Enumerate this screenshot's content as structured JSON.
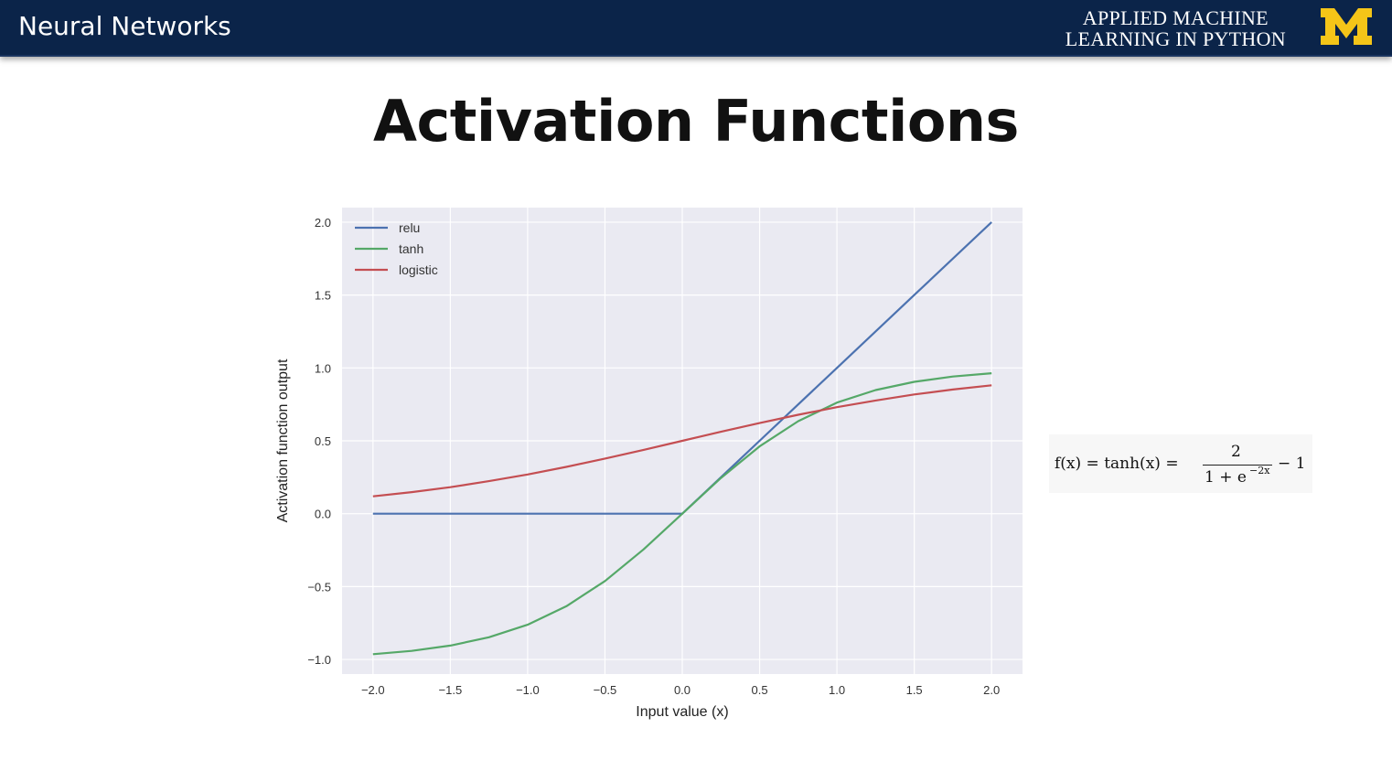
{
  "header": {
    "title": "Neural Networks",
    "brand_line1": "APPLIED MACHINE",
    "brand_line2": "LEARNING IN PYTHON",
    "logo_color": "#f5c518"
  },
  "slide": {
    "title": "Activation Functions"
  },
  "formula": {
    "lhs": "f(x) = tanh(x) =",
    "numerator": "2",
    "denominator": "1 + e",
    "exponent": "−2x",
    "tail": "− 1"
  },
  "chart_data": {
    "type": "line",
    "title": "",
    "xlabel": "Input value (x)",
    "ylabel": "Activation function output",
    "xlim": [
      -2.2,
      2.2
    ],
    "ylim": [
      -1.1,
      2.1
    ],
    "xticks": [
      -2.0,
      -1.5,
      -1.0,
      -0.5,
      0.0,
      0.5,
      1.0,
      1.5,
      2.0
    ],
    "xtick_labels": [
      "−2.0",
      "−1.5",
      "−1.0",
      "−0.5",
      "0.0",
      "0.5",
      "1.0",
      "1.5",
      "2.0"
    ],
    "yticks": [
      -1.0,
      -0.5,
      0.0,
      0.5,
      1.0,
      1.5,
      2.0
    ],
    "ytick_labels": [
      "−1.0",
      "−0.5",
      "0.0",
      "0.5",
      "1.0",
      "1.5",
      "2.0"
    ],
    "grid": true,
    "legend_position": "top-left",
    "series": [
      {
        "name": "relu",
        "color": "#4c72b0",
        "x": [
          -2.0,
          -1.5,
          -1.0,
          -0.5,
          0.0,
          0.5,
          1.0,
          1.5,
          2.0
        ],
        "y": [
          0.0,
          0.0,
          0.0,
          0.0,
          0.0,
          0.5,
          1.0,
          1.5,
          2.0
        ]
      },
      {
        "name": "tanh",
        "color": "#55a868",
        "x": [
          -2.0,
          -1.75,
          -1.5,
          -1.25,
          -1.0,
          -0.75,
          -0.5,
          -0.25,
          0.0,
          0.25,
          0.5,
          0.75,
          1.0,
          1.25,
          1.5,
          1.75,
          2.0
        ],
        "y": [
          -0.964,
          -0.941,
          -0.905,
          -0.848,
          -0.762,
          -0.635,
          -0.462,
          -0.245,
          0.0,
          0.245,
          0.462,
          0.635,
          0.762,
          0.848,
          0.905,
          0.941,
          0.964
        ]
      },
      {
        "name": "logistic",
        "color": "#c44e52",
        "x": [
          -2.0,
          -1.75,
          -1.5,
          -1.25,
          -1.0,
          -0.75,
          -0.5,
          -0.25,
          0.0,
          0.25,
          0.5,
          0.75,
          1.0,
          1.25,
          1.5,
          1.75,
          2.0
        ],
        "y": [
          0.119,
          0.148,
          0.182,
          0.223,
          0.269,
          0.321,
          0.378,
          0.438,
          0.5,
          0.562,
          0.622,
          0.679,
          0.731,
          0.777,
          0.818,
          0.852,
          0.881
        ]
      }
    ]
  }
}
